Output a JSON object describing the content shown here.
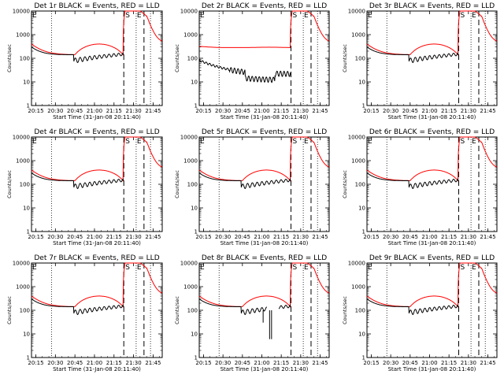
{
  "chart_data": [
    {
      "type": "line",
      "title": "Det 1r BLACK = Events, RED = LLD",
      "gap": false,
      "flat": false
    },
    {
      "type": "line",
      "title": "Det 2r BLACK = Events, RED = LLD",
      "gap": false,
      "flat": true
    },
    {
      "type": "line",
      "title": "Det 3r BLACK = Events, RED = LLD",
      "gap": false,
      "flat": false
    },
    {
      "type": "line",
      "title": "Det 4r BLACK = Events, RED = LLD",
      "gap": false,
      "flat": false
    },
    {
      "type": "line",
      "title": "Det 5r BLACK = Events, RED = LLD",
      "gap": false,
      "flat": false
    },
    {
      "type": "line",
      "title": "Det 6r BLACK = Events, RED = LLD",
      "gap": false,
      "flat": false
    },
    {
      "type": "line",
      "title": "Det 7r BLACK = Events, RED = LLD",
      "gap": false,
      "flat": false
    },
    {
      "type": "line",
      "title": "Det 8r BLACK = Events, RED = LLD",
      "gap": true,
      "flat": false
    },
    {
      "type": "line",
      "title": "Det 9r BLACK = Events, RED = LLD",
      "gap": false,
      "flat": false
    }
  ],
  "shared": {
    "ylabel": "Counts/sec",
    "xlabel": "Start Time (31-Jan-08 20:11:40)",
    "yscale": "log",
    "ylim": [
      1,
      10000
    ],
    "xlim": [
      "20:11:40",
      "21:52:00"
    ],
    "yticks": [
      "1",
      "10",
      "100",
      "1000",
      "10000"
    ],
    "xticks": [
      "20:15",
      "20:30",
      "20:45",
      "21:00",
      "21:15",
      "21:30",
      "21:45"
    ],
    "markers": [
      "S",
      "E"
    ],
    "colors": {
      "events": "#000000",
      "lld": "#ff0000"
    }
  }
}
